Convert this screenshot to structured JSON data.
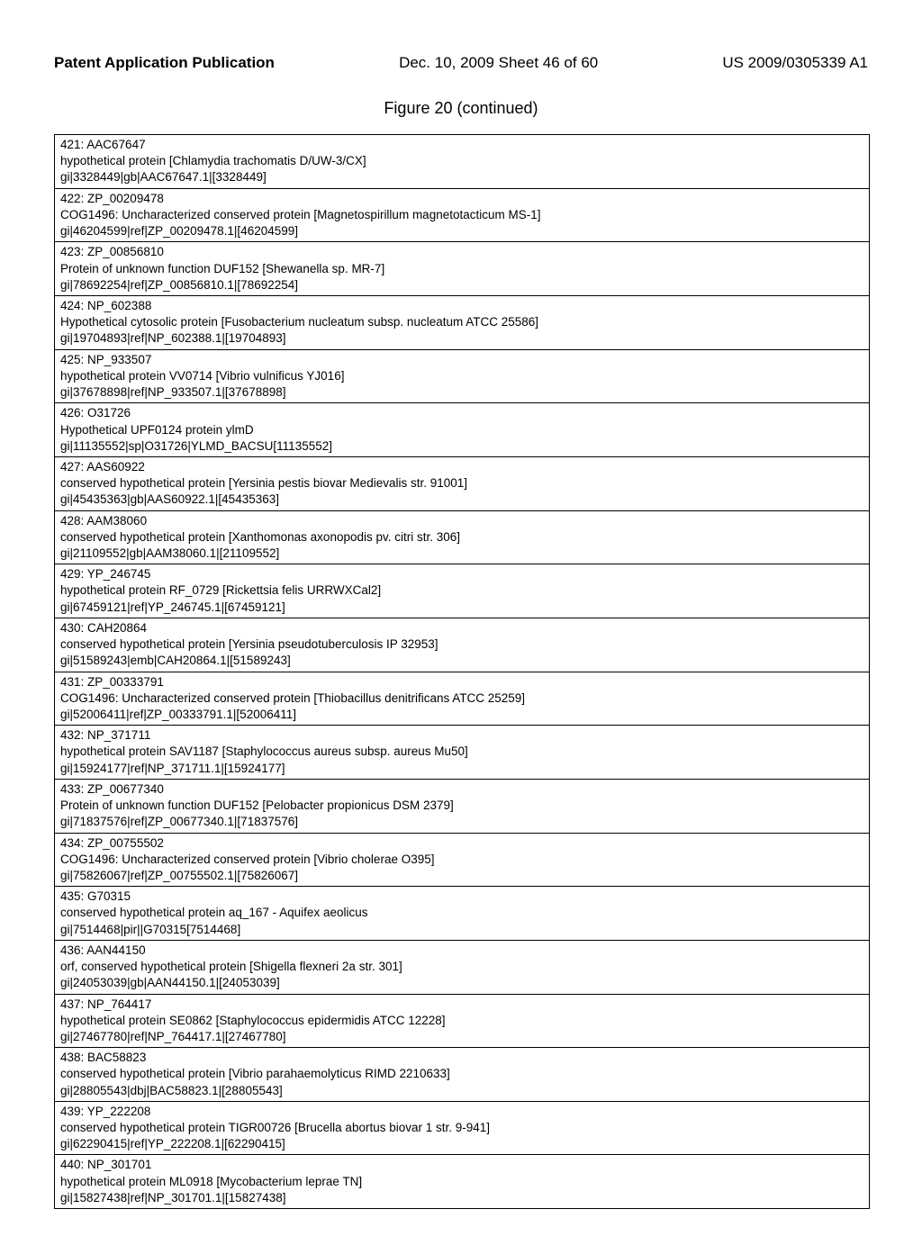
{
  "header": {
    "left": "Patent Application Publication",
    "center": "Dec. 10, 2009  Sheet 46 of 60",
    "right": "US 2009/0305339 A1"
  },
  "figure_title": "Figure 20 (continued)",
  "entries": [
    {
      "a": "421:  AAC67647",
      "b": "hypothetical protein [Chlamydia trachomatis D/UW-3/CX]",
      "c": "gi|3328449|gb|AAC67647.1|[3328449]"
    },
    {
      "a": "422:  ZP_00209478",
      "b": "COG1496: Uncharacterized conserved protein [Magnetospirillum magnetotacticum MS-1]",
      "c": "gi|46204599|ref|ZP_00209478.1|[46204599]"
    },
    {
      "a": "423:  ZP_00856810",
      "b": "Protein of unknown function DUF152 [Shewanella sp. MR-7]",
      "c": "gi|78692254|ref|ZP_00856810.1|[78692254]"
    },
    {
      "a": "424:  NP_602388",
      "b": "Hypothetical cytosolic protein [Fusobacterium nucleatum subsp. nucleatum ATCC 25586]",
      "c": "gi|19704893|ref|NP_602388.1|[19704893]"
    },
    {
      "a": "425:  NP_933507",
      "b": "hypothetical protein VV0714 [Vibrio vulnificus YJ016]",
      "c": "gi|37678898|ref|NP_933507.1|[37678898]"
    },
    {
      "a": "426:  O31726",
      "b": "Hypothetical UPF0124 protein ylmD",
      "c": "gi|11135552|sp|O31726|YLMD_BACSU[11135552]"
    },
    {
      "a": "427:  AAS60922",
      "b": "conserved hypothetical protein [Yersinia pestis biovar Medievalis str. 91001]",
      "c": "gi|45435363|gb|AAS60922.1|[45435363]"
    },
    {
      "a": "428:  AAM38060",
      "b": "conserved hypothetical protein [Xanthomonas axonopodis pv. citri str. 306]",
      "c": "gi|21109552|gb|AAM38060.1|[21109552]"
    },
    {
      "a": "429:  YP_246745",
      "b": "hypothetical protein RF_0729 [Rickettsia felis URRWXCal2]",
      "c": "gi|67459121|ref|YP_246745.1|[67459121]"
    },
    {
      "a": "430:  CAH20864",
      "b": "conserved hypothetical protein [Yersinia pseudotuberculosis IP 32953]",
      "c": "gi|51589243|emb|CAH20864.1|[51589243]"
    },
    {
      "a": "431:  ZP_00333791",
      "b": "COG1496: Uncharacterized conserved protein [Thiobacillus denitrificans ATCC 25259]",
      "c": "gi|52006411|ref|ZP_00333791.1|[52006411]"
    },
    {
      "a": "432:  NP_371711",
      "b": "hypothetical protein SAV1187 [Staphylococcus aureus subsp. aureus Mu50]",
      "c": "gi|15924177|ref|NP_371711.1|[15924177]"
    },
    {
      "a": "433:  ZP_00677340",
      "b": "Protein of unknown function DUF152 [Pelobacter propionicus DSM 2379]",
      "c": "gi|71837576|ref|ZP_00677340.1|[71837576]"
    },
    {
      "a": "434:  ZP_00755502",
      "b": "COG1496: Uncharacterized conserved protein [Vibrio cholerae O395]",
      "c": "gi|75826067|ref|ZP_00755502.1|[75826067]"
    },
    {
      "a": "435:  G70315",
      "b": "conserved hypothetical protein aq_167 - Aquifex aeolicus",
      "c": "gi|7514468|pir||G70315[7514468]"
    },
    {
      "a": "436:  AAN44150",
      "b": "orf, conserved hypothetical protein [Shigella flexneri 2a str. 301]",
      "c": "gi|24053039|gb|AAN44150.1|[24053039]"
    },
    {
      "a": "437:  NP_764417",
      "b": "hypothetical protein SE0862 [Staphylococcus epidermidis ATCC 12228]",
      "c": "gi|27467780|ref|NP_764417.1|[27467780]"
    },
    {
      "a": "438:  BAC58823",
      "b": "conserved hypothetical protein [Vibrio parahaemolyticus RIMD 2210633]",
      "c": "gi|28805543|dbj|BAC58823.1|[28805543]"
    },
    {
      "a": "439:  YP_222208",
      "b": "conserved hypothetical protein TIGR00726 [Brucella abortus biovar 1 str. 9-941]",
      "c": "gi|62290415|ref|YP_222208.1|[62290415]"
    },
    {
      "a": "440:  NP_301701",
      "b": "hypothetical protein ML0918 [Mycobacterium leprae TN]",
      "c": "gi|15827438|ref|NP_301701.1|[15827438]"
    }
  ]
}
